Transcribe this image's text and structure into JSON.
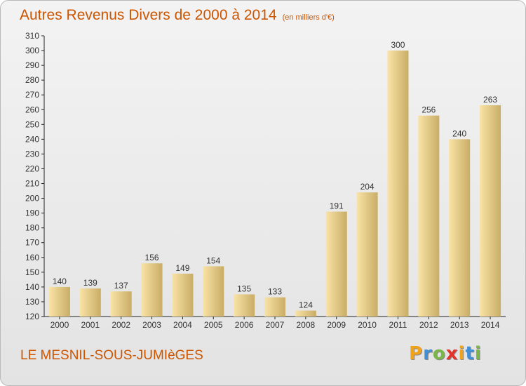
{
  "header": {
    "title": "Autres Revenus Divers de 2000 à 2014",
    "unit": "(en milliers d'€)"
  },
  "footer": {
    "location": "LE MESNIL-SOUS-JUMIèGES",
    "logo_letters": [
      "P",
      "r",
      "o",
      "x",
      "i",
      "t",
      "i"
    ],
    "logo_colors": [
      "#f0a21b",
      "#3f8fd6",
      "#7ab648",
      "#e4342a",
      "#f0a21b",
      "#3f8fd6",
      "#7ab648"
    ]
  },
  "colors": {
    "title": "#cc5500",
    "bar_light": "#f9e3a6",
    "bar_dark": "#c9ad66"
  },
  "chart_data": {
    "type": "bar",
    "title": "Autres Revenus Divers de 2000 à 2014",
    "xlabel": "",
    "ylabel": "",
    "categories": [
      "2000",
      "2001",
      "2002",
      "2003",
      "2004",
      "2005",
      "2006",
      "2007",
      "2008",
      "2009",
      "2010",
      "2011",
      "2012",
      "2013",
      "2014"
    ],
    "values": [
      140,
      139,
      137,
      156,
      149,
      154,
      135,
      133,
      124,
      191,
      204,
      300,
      256,
      240,
      263
    ],
    "ylim": [
      120,
      310
    ],
    "yticks": [
      120,
      130,
      140,
      150,
      160,
      170,
      180,
      190,
      200,
      210,
      220,
      230,
      240,
      250,
      260,
      270,
      280,
      290,
      300,
      310
    ],
    "grid": false,
    "legend": "none"
  }
}
